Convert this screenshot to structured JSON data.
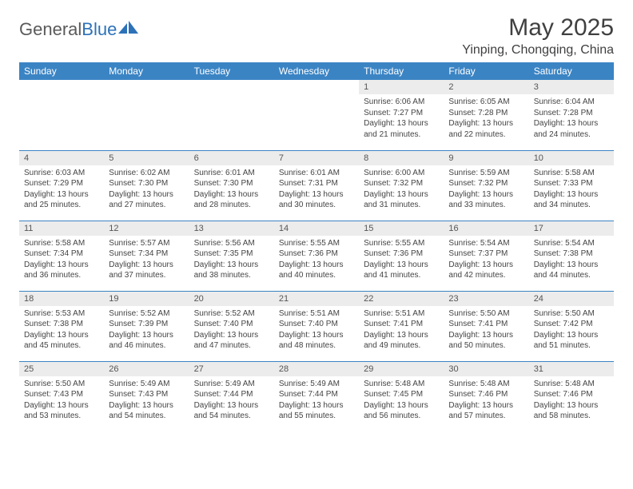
{
  "logo": {
    "word1": "General",
    "word2": "Blue"
  },
  "title": "May 2025",
  "location": "Yinping, Chongqing, China",
  "colors": {
    "header_bg": "#3b84c4",
    "header_text": "#ffffff",
    "daynum_bg": "#ececec",
    "cell_border": "#3b84c4",
    "logo_gray": "#5a5a5a",
    "logo_blue": "#2d72b8",
    "text": "#404040"
  },
  "days_of_week": [
    "Sunday",
    "Monday",
    "Tuesday",
    "Wednesday",
    "Thursday",
    "Friday",
    "Saturday"
  ],
  "weeks": [
    [
      null,
      null,
      null,
      null,
      {
        "n": "1",
        "sr": "Sunrise: 6:06 AM",
        "ss": "Sunset: 7:27 PM",
        "d1": "Daylight: 13 hours",
        "d2": "and 21 minutes."
      },
      {
        "n": "2",
        "sr": "Sunrise: 6:05 AM",
        "ss": "Sunset: 7:28 PM",
        "d1": "Daylight: 13 hours",
        "d2": "and 22 minutes."
      },
      {
        "n": "3",
        "sr": "Sunrise: 6:04 AM",
        "ss": "Sunset: 7:28 PM",
        "d1": "Daylight: 13 hours",
        "d2": "and 24 minutes."
      }
    ],
    [
      {
        "n": "4",
        "sr": "Sunrise: 6:03 AM",
        "ss": "Sunset: 7:29 PM",
        "d1": "Daylight: 13 hours",
        "d2": "and 25 minutes."
      },
      {
        "n": "5",
        "sr": "Sunrise: 6:02 AM",
        "ss": "Sunset: 7:30 PM",
        "d1": "Daylight: 13 hours",
        "d2": "and 27 minutes."
      },
      {
        "n": "6",
        "sr": "Sunrise: 6:01 AM",
        "ss": "Sunset: 7:30 PM",
        "d1": "Daylight: 13 hours",
        "d2": "and 28 minutes."
      },
      {
        "n": "7",
        "sr": "Sunrise: 6:01 AM",
        "ss": "Sunset: 7:31 PM",
        "d1": "Daylight: 13 hours",
        "d2": "and 30 minutes."
      },
      {
        "n": "8",
        "sr": "Sunrise: 6:00 AM",
        "ss": "Sunset: 7:32 PM",
        "d1": "Daylight: 13 hours",
        "d2": "and 31 minutes."
      },
      {
        "n": "9",
        "sr": "Sunrise: 5:59 AM",
        "ss": "Sunset: 7:32 PM",
        "d1": "Daylight: 13 hours",
        "d2": "and 33 minutes."
      },
      {
        "n": "10",
        "sr": "Sunrise: 5:58 AM",
        "ss": "Sunset: 7:33 PM",
        "d1": "Daylight: 13 hours",
        "d2": "and 34 minutes."
      }
    ],
    [
      {
        "n": "11",
        "sr": "Sunrise: 5:58 AM",
        "ss": "Sunset: 7:34 PM",
        "d1": "Daylight: 13 hours",
        "d2": "and 36 minutes."
      },
      {
        "n": "12",
        "sr": "Sunrise: 5:57 AM",
        "ss": "Sunset: 7:34 PM",
        "d1": "Daylight: 13 hours",
        "d2": "and 37 minutes."
      },
      {
        "n": "13",
        "sr": "Sunrise: 5:56 AM",
        "ss": "Sunset: 7:35 PM",
        "d1": "Daylight: 13 hours",
        "d2": "and 38 minutes."
      },
      {
        "n": "14",
        "sr": "Sunrise: 5:55 AM",
        "ss": "Sunset: 7:36 PM",
        "d1": "Daylight: 13 hours",
        "d2": "and 40 minutes."
      },
      {
        "n": "15",
        "sr": "Sunrise: 5:55 AM",
        "ss": "Sunset: 7:36 PM",
        "d1": "Daylight: 13 hours",
        "d2": "and 41 minutes."
      },
      {
        "n": "16",
        "sr": "Sunrise: 5:54 AM",
        "ss": "Sunset: 7:37 PM",
        "d1": "Daylight: 13 hours",
        "d2": "and 42 minutes."
      },
      {
        "n": "17",
        "sr": "Sunrise: 5:54 AM",
        "ss": "Sunset: 7:38 PM",
        "d1": "Daylight: 13 hours",
        "d2": "and 44 minutes."
      }
    ],
    [
      {
        "n": "18",
        "sr": "Sunrise: 5:53 AM",
        "ss": "Sunset: 7:38 PM",
        "d1": "Daylight: 13 hours",
        "d2": "and 45 minutes."
      },
      {
        "n": "19",
        "sr": "Sunrise: 5:52 AM",
        "ss": "Sunset: 7:39 PM",
        "d1": "Daylight: 13 hours",
        "d2": "and 46 minutes."
      },
      {
        "n": "20",
        "sr": "Sunrise: 5:52 AM",
        "ss": "Sunset: 7:40 PM",
        "d1": "Daylight: 13 hours",
        "d2": "and 47 minutes."
      },
      {
        "n": "21",
        "sr": "Sunrise: 5:51 AM",
        "ss": "Sunset: 7:40 PM",
        "d1": "Daylight: 13 hours",
        "d2": "and 48 minutes."
      },
      {
        "n": "22",
        "sr": "Sunrise: 5:51 AM",
        "ss": "Sunset: 7:41 PM",
        "d1": "Daylight: 13 hours",
        "d2": "and 49 minutes."
      },
      {
        "n": "23",
        "sr": "Sunrise: 5:50 AM",
        "ss": "Sunset: 7:41 PM",
        "d1": "Daylight: 13 hours",
        "d2": "and 50 minutes."
      },
      {
        "n": "24",
        "sr": "Sunrise: 5:50 AM",
        "ss": "Sunset: 7:42 PM",
        "d1": "Daylight: 13 hours",
        "d2": "and 51 minutes."
      }
    ],
    [
      {
        "n": "25",
        "sr": "Sunrise: 5:50 AM",
        "ss": "Sunset: 7:43 PM",
        "d1": "Daylight: 13 hours",
        "d2": "and 53 minutes."
      },
      {
        "n": "26",
        "sr": "Sunrise: 5:49 AM",
        "ss": "Sunset: 7:43 PM",
        "d1": "Daylight: 13 hours",
        "d2": "and 54 minutes."
      },
      {
        "n": "27",
        "sr": "Sunrise: 5:49 AM",
        "ss": "Sunset: 7:44 PM",
        "d1": "Daylight: 13 hours",
        "d2": "and 54 minutes."
      },
      {
        "n": "28",
        "sr": "Sunrise: 5:49 AM",
        "ss": "Sunset: 7:44 PM",
        "d1": "Daylight: 13 hours",
        "d2": "and 55 minutes."
      },
      {
        "n": "29",
        "sr": "Sunrise: 5:48 AM",
        "ss": "Sunset: 7:45 PM",
        "d1": "Daylight: 13 hours",
        "d2": "and 56 minutes."
      },
      {
        "n": "30",
        "sr": "Sunrise: 5:48 AM",
        "ss": "Sunset: 7:46 PM",
        "d1": "Daylight: 13 hours",
        "d2": "and 57 minutes."
      },
      {
        "n": "31",
        "sr": "Sunrise: 5:48 AM",
        "ss": "Sunset: 7:46 PM",
        "d1": "Daylight: 13 hours",
        "d2": "and 58 minutes."
      }
    ]
  ]
}
